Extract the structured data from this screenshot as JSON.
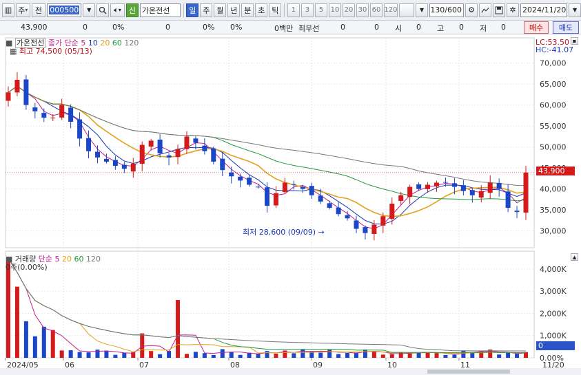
{
  "toolbar": {
    "type_label": "주",
    "market_label": "전",
    "code_value": "000500",
    "badge": "신",
    "stock_name": "가온전선",
    "periods": [
      "일",
      "주",
      "월",
      "년",
      "분",
      "초",
      "틱"
    ],
    "active_period": "일",
    "intervals": [
      "1",
      "3",
      "5",
      "10",
      "20",
      "30",
      "60",
      "120"
    ],
    "count_value": "130",
    "count_total": "/600",
    "date_value": "2024/11/20"
  },
  "info": {
    "price": "43,900",
    "change": "0",
    "change_pct": "0%",
    "volume": "0",
    "volume_pct": "0%",
    "extra_pct": "0%",
    "amount_label": "0백만",
    "priority_label": "최우선",
    "bid_val": "0",
    "ask_val": "0",
    "open_label": "시",
    "open_val": "0",
    "high_label": "고",
    "high_val": "0",
    "low_label": "저",
    "low_val": "0",
    "buy": "매수",
    "sell": "매도"
  },
  "price_panel": {
    "name": "가온전선",
    "ma_label": "종가 단순",
    "ma_periods": [
      "5",
      "10",
      "20",
      "60",
      "120"
    ],
    "ma_colors": [
      "#c0208c",
      "#1a36b8",
      "#e3a01a",
      "#1f9a3a",
      "#777777"
    ],
    "high_note": "최고 74,500 (05/13)",
    "low_note": "최저 28,600 (09/09)",
    "lc": "LC:53.50",
    "hc": "HC:-41.07",
    "current_price": "43,900",
    "yticks": [
      "70,000",
      "65,000",
      "60,000",
      "55,000",
      "50,000",
      "45,000",
      "40,000",
      "35,000",
      "30,000"
    ]
  },
  "volume_panel": {
    "name": "거래량",
    "ma_label": "단순",
    "ma_periods": [
      "5",
      "20",
      "60",
      "120"
    ],
    "sub_label": "0주(0.00%)",
    "yticks": [
      "4,000K",
      "3,000K",
      "2,000K",
      "1,000K",
      "0.00%"
    ],
    "current_value": "0"
  },
  "xaxis": {
    "months": [
      "2024/05",
      "06",
      "07",
      "08",
      "09",
      "10",
      "11"
    ],
    "right_label": "11/20"
  },
  "chart_data": {
    "type": "candlestick",
    "title": "가온전선",
    "ylim": [
      26000,
      76000
    ],
    "x_range": [
      "2024/05",
      "11/20"
    ],
    "annotations": [
      "최고 74,500 (05/13)",
      "최저 28,600 (09/09)"
    ],
    "current_price": 43900,
    "price_series_approx": [
      63000,
      66000,
      60000,
      58500,
      57000,
      57000,
      60000,
      56000,
      52000,
      49000,
      47500,
      46500,
      45500,
      44800,
      46000,
      50500,
      51500,
      48500,
      47500,
      49500,
      52500,
      51000,
      49000,
      46500,
      44500,
      43000,
      42000,
      41000,
      40500,
      36000,
      39000,
      41500,
      41000,
      40000,
      38500,
      37000,
      35500,
      34000,
      33000,
      30500,
      29500,
      31500,
      33500,
      36500,
      38500,
      40500,
      40000,
      41000,
      41500,
      41500,
      40500,
      39500,
      38500,
      39500,
      41500,
      40000,
      35500,
      34500,
      43900
    ],
    "volume_ylim_k": [
      0,
      4800
    ],
    "volume_yticks_k": [
      0,
      1000,
      2000,
      3000,
      4000
    ]
  }
}
